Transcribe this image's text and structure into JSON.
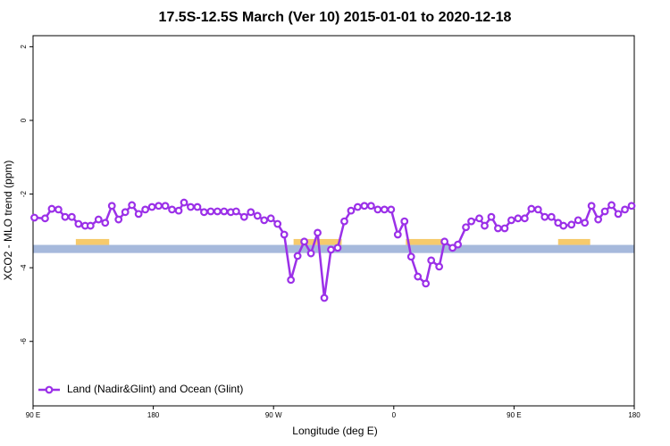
{
  "chart_data": {
    "type": "line",
    "title": "17.5S-12.5S March (Ver 10)   2015-01-01 to 2020-12-18",
    "x_label": "Longitude (deg E)",
    "y_label": "XCO2 - MLO trend (ppm)",
    "xlim": [
      90,
      540
    ],
    "xticks": [
      {
        "value": 90,
        "label": "90 E"
      },
      180,
      {
        "value": 270,
        "label": "90 W"
      },
      {
        "value": 360,
        "label": "0"
      },
      {
        "value": 450,
        "label": "90 E"
      },
      {
        "value": 540,
        "label": "180"
      }
    ],
    "ylim": [
      -7.75,
      2.3
    ],
    "yticks": [
      2,
      0,
      -2,
      -4,
      -6
    ],
    "legend": "bottom-left",
    "band": {
      "color": "#a6b9dc",
      "ylim": [
        -3.6,
        -3.38
      ]
    },
    "highlights": {
      "color": "#f6ca6c",
      "ylim": [
        -3.38,
        -3.22
      ],
      "x": [
        [
          122,
          147
        ],
        [
          285,
          321
        ],
        [
          369,
          400
        ],
        [
          483,
          507
        ]
      ]
    },
    "series": [
      {
        "name": "Land (Nadir&Glint) and Ocean (Glint)",
        "color": "#9b30e8",
        "x": [
          91,
          99,
          104,
          109,
          114,
          119,
          124,
          129,
          133,
          139,
          144,
          149,
          154,
          159,
          164,
          169,
          174,
          179,
          184,
          189,
          194,
          199,
          203,
          208,
          213,
          218,
          223,
          228,
          233,
          238,
          242,
          248,
          253,
          258,
          263,
          268,
          273,
          278,
          283,
          288,
          293,
          298,
          303,
          308,
          313,
          318,
          323,
          328,
          333,
          338,
          343,
          348,
          353,
          358,
          363,
          368,
          373,
          378,
          384,
          388,
          394,
          398,
          404,
          408,
          414,
          418,
          424,
          428,
          433,
          438,
          443,
          448,
          453,
          458,
          463,
          468,
          473,
          478,
          483,
          487,
          493,
          498,
          503,
          508,
          513,
          518,
          523,
          528,
          533,
          538
        ],
        "values": [
          -2.64,
          -2.66,
          -2.4,
          -2.42,
          -2.62,
          -2.62,
          -2.81,
          -2.86,
          -2.86,
          -2.69,
          -2.78,
          -2.32,
          -2.69,
          -2.49,
          -2.3,
          -2.54,
          -2.42,
          -2.35,
          -2.32,
          -2.32,
          -2.42,
          -2.45,
          -2.23,
          -2.35,
          -2.35,
          -2.49,
          -2.47,
          -2.47,
          -2.47,
          -2.49,
          -2.47,
          -2.62,
          -2.49,
          -2.59,
          -2.71,
          -2.66,
          -2.81,
          -3.1,
          -4.33,
          -3.68,
          -3.29,
          -3.61,
          -3.05,
          -4.82,
          -3.51,
          -3.46,
          -2.74,
          -2.45,
          -2.35,
          -2.32,
          -2.32,
          -2.42,
          -2.42,
          -2.42,
          -3.1,
          -2.74,
          -3.7,
          -4.24,
          -4.43,
          -3.8,
          -3.97,
          -3.29,
          -3.46,
          -3.37,
          -2.9,
          -2.74,
          -2.66,
          -2.86,
          -2.62,
          -2.93,
          -2.93,
          -2.71,
          -2.66,
          -2.66,
          -2.4,
          -2.42,
          -2.62,
          -2.62,
          -2.78,
          -2.86,
          -2.83,
          -2.71,
          -2.78,
          -2.32,
          -2.69,
          -2.47,
          -2.3,
          -2.54,
          -2.42,
          -2.32
        ]
      }
    ]
  }
}
